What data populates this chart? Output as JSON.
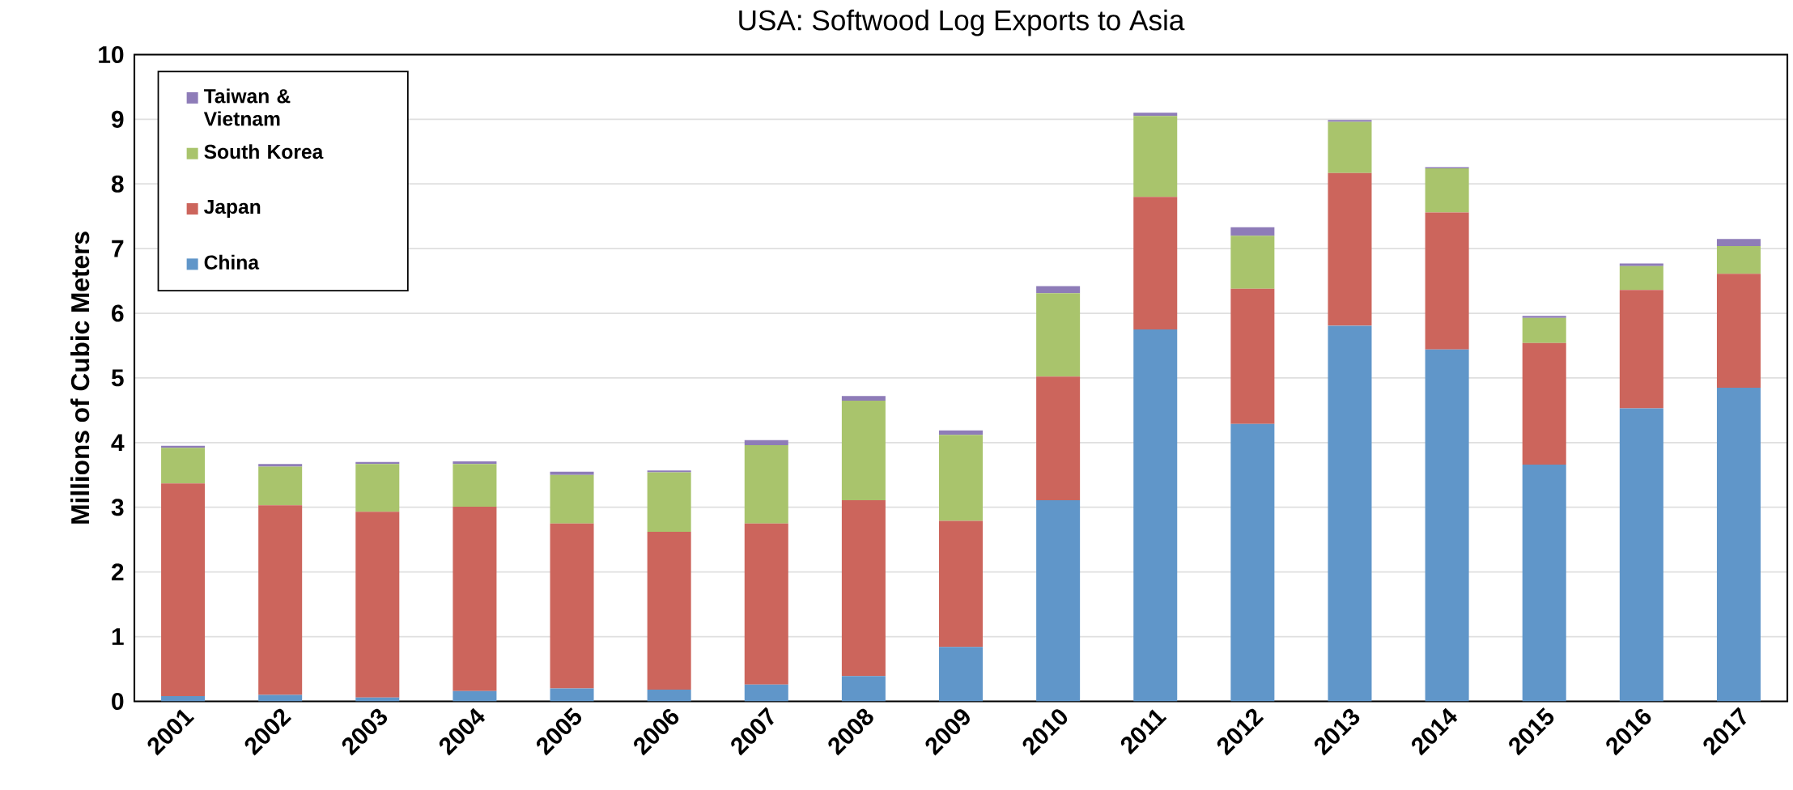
{
  "chart_data": {
    "type": "bar",
    "title": "USA: Softwood Log Exports to Asia",
    "ylabel": "Millions of Cubic Meters",
    "stacked": true,
    "categories": [
      "2001",
      "2002",
      "2003",
      "2004",
      "2005",
      "2006",
      "2007",
      "2008",
      "2009",
      "2010",
      "2011",
      "2012",
      "2013",
      "2014",
      "2015",
      "2016",
      "2017"
    ],
    "series": [
      {
        "name": "China",
        "color": "#6096c9",
        "values": [
          0.08,
          0.1,
          0.06,
          0.16,
          0.2,
          0.18,
          0.26,
          0.39,
          0.84,
          3.11,
          5.75,
          4.29,
          5.81,
          5.44,
          3.66,
          4.53,
          4.85
        ]
      },
      {
        "name": "Japan",
        "color": "#cc655c",
        "values": [
          3.29,
          2.93,
          2.87,
          2.85,
          2.55,
          2.44,
          2.49,
          2.72,
          1.95,
          1.91,
          2.05,
          2.09,
          2.36,
          2.12,
          1.88,
          1.83,
          1.76
        ]
      },
      {
        "name": "South Korea",
        "color": "#a9c46c",
        "values": [
          0.55,
          0.6,
          0.74,
          0.66,
          0.75,
          0.92,
          1.21,
          1.54,
          1.33,
          1.29,
          1.25,
          0.82,
          0.79,
          0.68,
          0.39,
          0.37,
          0.43
        ]
      },
      {
        "name": "Taiwan & Vietnam",
        "color": "#8e7cb8",
        "values": [
          0.03,
          0.04,
          0.03,
          0.04,
          0.05,
          0.03,
          0.08,
          0.07,
          0.07,
          0.11,
          0.05,
          0.13,
          0.03,
          0.02,
          0.03,
          0.04,
          0.11
        ]
      }
    ],
    "ylim": [
      0,
      10
    ],
    "yticks": [
      0,
      1,
      2,
      3,
      4,
      5,
      6,
      7,
      8,
      9,
      10
    ],
    "grid": "y",
    "legend": "top left"
  }
}
